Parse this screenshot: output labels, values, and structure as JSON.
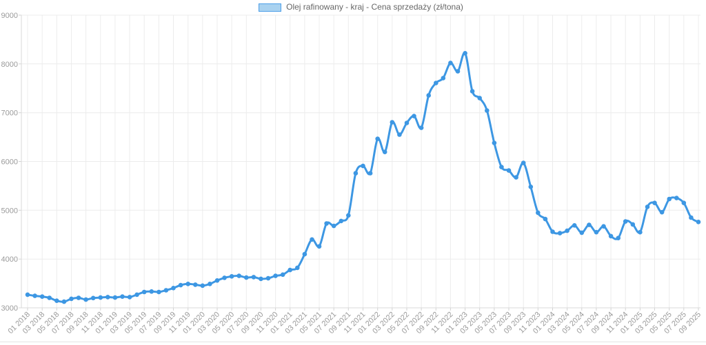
{
  "legend": {
    "label": "Olej rafinowany - kraj - Cena sprzedaży (zł/tona)"
  },
  "colors": {
    "line": "#3d97e3",
    "point": "#3d97e3",
    "legend_fill": "#a9d2f0",
    "legend_border": "#4c9fe8",
    "grid": "#ececec",
    "axis_line": "#d9d9d9",
    "tick": "#d2d2d2",
    "axis_text": "#9a9a9a",
    "legend_text": "#666666",
    "page_rule": "#e4e4e4"
  },
  "chart_data": {
    "type": "line",
    "title": "",
    "legend": "Olej rafinowany - kraj - Cena sprzedaży (zł/tona)",
    "points_start": "01 2018",
    "points_end": "09 2025",
    "points_interval": "monthly",
    "ylim": [
      3000,
      9000
    ],
    "y_ticks": [
      3000,
      4000,
      5000,
      6000,
      7000,
      8000,
      9000
    ],
    "x_tick_every_n_points": 2,
    "x_tick_labels": [
      "01 2018",
      "03 2018",
      "05 2018",
      "07 2018",
      "09 2018",
      "11 2018",
      "01 2019",
      "03 2019",
      "05 2019",
      "07 2019",
      "09 2019",
      "11 2019",
      "01 2020",
      "03 2020",
      "05 2020",
      "07 2020",
      "09 2020",
      "11 2020",
      "01 2021",
      "03 2021",
      "05 2021",
      "07 2021",
      "09 2021",
      "11 2021",
      "01 2022",
      "03 2022",
      "05 2022",
      "07 2022",
      "09 2022",
      "11 2022",
      "01 2023",
      "03 2023",
      "05 2023",
      "07 2023",
      "09 2023",
      "11 2023",
      "01 2024",
      "03 2024",
      "05 2024",
      "07 2024",
      "09 2024",
      "11 2024",
      "01 2025",
      "03 2025",
      "05 2025",
      "07 2025",
      "09 2025"
    ],
    "values": [
      3270,
      3245,
      3230,
      3205,
      3145,
      3125,
      3185,
      3205,
      3170,
      3200,
      3210,
      3220,
      3210,
      3230,
      3220,
      3270,
      3325,
      3335,
      3325,
      3360,
      3405,
      3465,
      3490,
      3475,
      3455,
      3490,
      3560,
      3615,
      3645,
      3655,
      3620,
      3630,
      3595,
      3605,
      3655,
      3680,
      3775,
      3820,
      4100,
      4400,
      4260,
      4730,
      4680,
      4780,
      4895,
      5760,
      5910,
      5760,
      6465,
      6195,
      6805,
      6550,
      6790,
      6930,
      6690,
      7355,
      7610,
      7710,
      8020,
      7850,
      8220,
      7440,
      7300,
      7045,
      6380,
      5885,
      5815,
      5675,
      5970,
      5480,
      4950,
      4820,
      4560,
      4530,
      4580,
      4690,
      4540,
      4700,
      4550,
      4670,
      4470,
      4430,
      4770,
      4710,
      4550,
      5070,
      5150,
      4960,
      5230,
      5250,
      5150,
      4850,
      4760
    ],
    "grid": true,
    "legend_position": "top-center"
  }
}
